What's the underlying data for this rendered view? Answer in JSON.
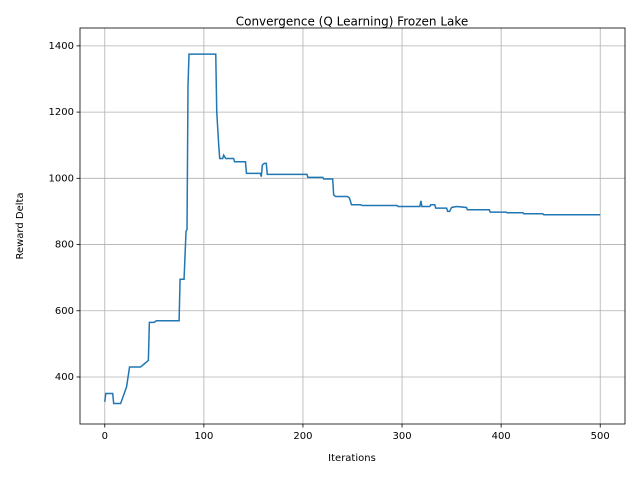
{
  "chart_data": {
    "type": "line",
    "title": "Convergence (Q Learning) Frozen Lake",
    "xlabel": "Iterations",
    "ylabel": "Reward Delta",
    "x": [
      0,
      1,
      8,
      9,
      16,
      22,
      25,
      36,
      40,
      44,
      45,
      50,
      52,
      75,
      76,
      78,
      80,
      82,
      83,
      84,
      85,
      112,
      113,
      115,
      116,
      119,
      120,
      122,
      130,
      131,
      142,
      143,
      157,
      158,
      159,
      161,
      163,
      164,
      204,
      205,
      220,
      221,
      230,
      231,
      233,
      245,
      247,
      249,
      258,
      260,
      295,
      296,
      318,
      319,
      320,
      328,
      329,
      333,
      334,
      345,
      346,
      348,
      350,
      355,
      365,
      366,
      388,
      389,
      405,
      406,
      422,
      423,
      442,
      443,
      500
    ],
    "series": [
      {
        "name": "Reward Delta",
        "color": "#1f77b4",
        "values": [
          325,
          350,
          350,
          320,
          320,
          370,
          430,
          430,
          440,
          450,
          565,
          565,
          570,
          570,
          695,
          695,
          695,
          840,
          845,
          1280,
          1375,
          1375,
          1200,
          1100,
          1060,
          1060,
          1070,
          1060,
          1060,
          1050,
          1050,
          1015,
          1015,
          1005,
          1040,
          1045,
          1045,
          1012,
          1012,
          1003,
          1003,
          998,
          998,
          950,
          945,
          945,
          940,
          920,
          920,
          918,
          918,
          915,
          915,
          932,
          915,
          915,
          920,
          920,
          910,
          910,
          900,
          900,
          912,
          915,
          912,
          905,
          905,
          898,
          898,
          896,
          896,
          893,
          893,
          890,
          890
        ]
      }
    ],
    "xlim": [
      -25,
      525
    ],
    "ylim": [
      258,
      1454
    ],
    "xticks": [
      0,
      100,
      200,
      300,
      400,
      500
    ],
    "yticks": [
      400,
      600,
      800,
      1000,
      1200,
      1400
    ],
    "grid": true
  }
}
